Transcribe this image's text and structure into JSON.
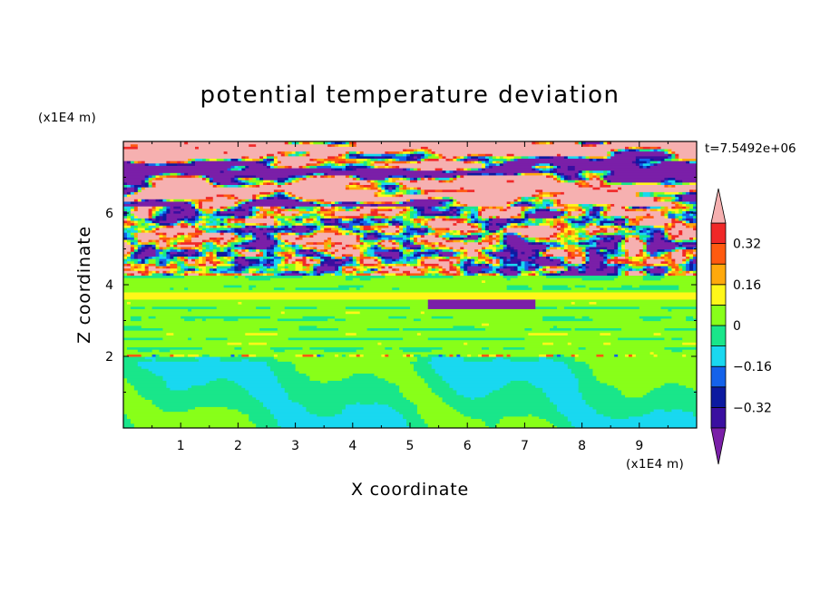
{
  "chart_data": {
    "type": "heatmap",
    "title": "potential temperature deviation",
    "xlabel": "X coordinate",
    "ylabel": "Z coordinate",
    "x_unit": "(x1E4 m)",
    "y_unit": "(x1E4 m)",
    "time_label": "t=7.5492e+06",
    "xlim": [
      0,
      10
    ],
    "ylim": [
      0,
      8
    ],
    "x_ticks": [
      "1",
      "2",
      "3",
      "4",
      "5",
      "6",
      "7",
      "8",
      "9"
    ],
    "y_ticks": [
      "2",
      "4",
      "6"
    ],
    "colorbar": {
      "levels": [
        -0.4,
        -0.32,
        -0.24,
        -0.16,
        -0.08,
        0,
        0.08,
        0.16,
        0.24,
        0.32,
        0.4
      ],
      "tick_labels": [
        "0.32",
        "0.16",
        "0",
        "-0.16",
        "-0.32"
      ],
      "colors": [
        "#7a1fa8",
        "#3a0fa0",
        "#0c1aa0",
        "#1462ea",
        "#19d8f0",
        "#19e68a",
        "#88ff19",
        "#fff719",
        "#ffa90c",
        "#ff5a10",
        "#f02828",
        "#f6b0b0"
      ]
    },
    "bands": [
      {
        "z": [
          0.0,
          2.0
        ],
        "class": "near-zero",
        "dominant": [
          "#19e68a",
          "#88ff19"
        ]
      },
      {
        "z": [
          2.0,
          2.1
        ],
        "class": "thin mixed layer",
        "dominant": [
          "#88ff19",
          "#fff719",
          "#ff5a10",
          "#1462ea"
        ]
      },
      {
        "z": [
          2.1,
          4.3
        ],
        "class": "near-zero",
        "dominant": [
          "#88ff19",
          "#19e68a",
          "#fff719"
        ]
      },
      {
        "z": [
          4.3,
          6.2
        ],
        "class": "strong mixed",
        "dominant": [
          "#7a1fa8",
          "#f6b0b0",
          "#19d8f0",
          "#fff719",
          "#ff5a10"
        ]
      },
      {
        "z": [
          6.2,
          8.0
        ],
        "class": "extreme layers",
        "dominant": [
          "#7a1fa8",
          "#f6b0b0"
        ]
      }
    ]
  }
}
